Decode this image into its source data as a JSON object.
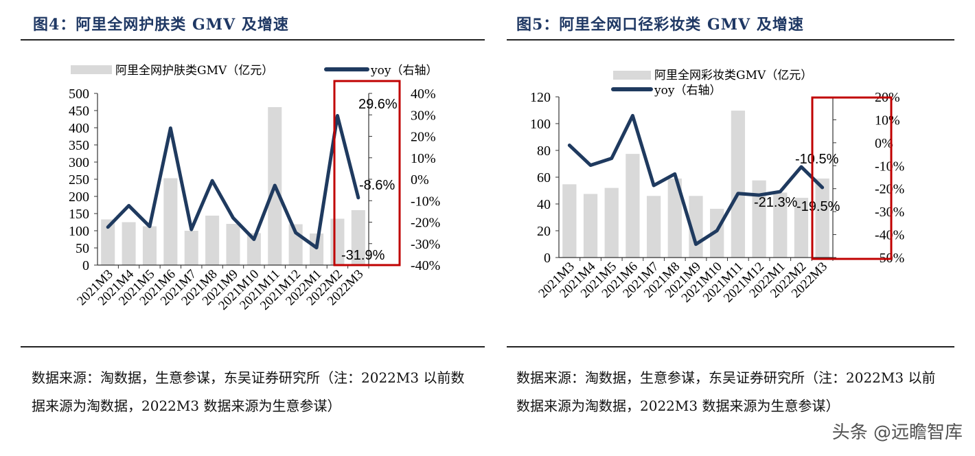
{
  "left": {
    "title": "图4：阿里全网护肤类 GMV 及增速",
    "note": "数据来源：淘数据，生意参谋，东吴证券研究所（注：2022M3 以前数据来源为淘数据，2022M3 数据来源为生意参谋）"
  },
  "right": {
    "title": "图5：阿里全网口径彩妆类 GMV 及增速",
    "note": "数据来源：淘数据，生意参谋，东吴证券研究所（注：2022M3 以前数据来源为淘数据，2022M3 数据来源为生意参谋）"
  },
  "watermark": "头条 @远瞻智库",
  "colors": {
    "bar": "#d9d9d9",
    "line": "#1f3a5f",
    "highlight": "#c00000",
    "title": "#1f3864"
  },
  "chart_data": [
    {
      "type": "bar+line",
      "categories": [
        "2021M3",
        "2021M4",
        "2021M5",
        "2021M6",
        "2021M7",
        "2021M8",
        "2021M9",
        "2021M10",
        "2021M11",
        "2021M12",
        "2022M1",
        "2022M2",
        "2022M3"
      ],
      "series": [
        {
          "name": "阿里全网护肤类GMV（亿元）",
          "type": "bar",
          "axis": "left",
          "values": [
            133,
            125,
            113,
            253,
            100,
            144,
            120,
            93,
            460,
            119,
            92,
            135,
            160
          ]
        },
        {
          "name": "yoy（右轴）",
          "type": "line",
          "axis": "right",
          "values": [
            -22.3,
            -12.3,
            -22,
            23.8,
            -23.4,
            -0.7,
            -18,
            -28,
            -2.9,
            -24.9,
            -31.9,
            29.6,
            -8.6
          ]
        }
      ],
      "ylim": [
        0,
        500
      ],
      "yticks": [
        "0",
        "50",
        "100",
        "150",
        "200",
        "250",
        "300",
        "350",
        "400",
        "450",
        "500"
      ],
      "y2lim": [
        -40,
        40
      ],
      "y2ticks": [
        "-40%",
        "-30%",
        "-20%",
        "-10%",
        "0%",
        "10%",
        "20%",
        "30%",
        "40%"
      ],
      "data_labels": [
        {
          "index": 10,
          "text": "-31.9%"
        },
        {
          "index": 11,
          "text": "29.6%"
        },
        {
          "index": 12,
          "text": "-8.6%"
        }
      ],
      "highlight": [
        "2022M1",
        "2022M3"
      ],
      "legend": "top"
    },
    {
      "type": "bar+line",
      "categories": [
        "2021M3",
        "2021M4",
        "2021M5",
        "2021M6",
        "2021M7",
        "2021M8",
        "2021M9",
        "2021M10",
        "2021M11",
        "2021M12",
        "2022M1",
        "2022M2",
        "2022M3"
      ],
      "series": [
        {
          "name": "阿里全网彩妆类GMV（亿元）",
          "type": "bar",
          "axis": "left",
          "values": [
            54.7,
            47.5,
            52,
            77.4,
            46,
            59,
            46,
            36.4,
            109.7,
            57.6,
            48.5,
            44.6,
            59
          ]
        },
        {
          "name": "yoy（右轴）",
          "type": "line",
          "axis": "right",
          "values": [
            -1.1,
            -9.8,
            -6.8,
            11.8,
            -18.6,
            -13.6,
            -44.2,
            -38.3,
            -22.1,
            -22.8,
            -21.3,
            -10.5,
            -19.5
          ]
        }
      ],
      "ylim": [
        0,
        120
      ],
      "yticks": [
        "0",
        "20",
        "40",
        "60",
        "80",
        "100",
        "120"
      ],
      "y2lim": [
        -50,
        20
      ],
      "y2ticks": [
        "-50%",
        "-40%",
        "-30%",
        "-20%",
        "-10%",
        "0%",
        "10%",
        "20%"
      ],
      "data_labels": [
        {
          "index": 10,
          "text": "-21.3%"
        },
        {
          "index": 11,
          "text": "-10.5%"
        },
        {
          "index": 12,
          "text": "-19.5%"
        }
      ],
      "highlight": [
        "2022M1",
        "2022M3"
      ],
      "legend": "top"
    }
  ]
}
